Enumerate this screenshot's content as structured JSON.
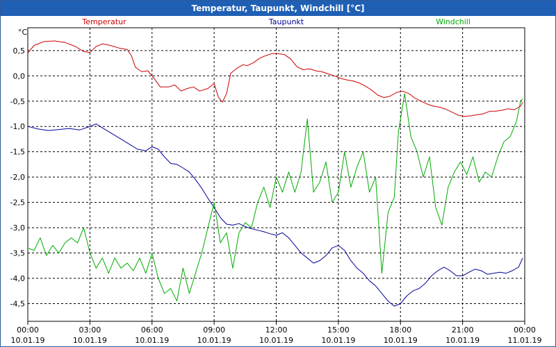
{
  "window": {
    "title": "Temperatur, Taupunkt, Windchill [°C]"
  },
  "chart_data": {
    "type": "line",
    "unit_label": "°C",
    "y_ticks": [
      "0,5",
      "0,0",
      "-0,5",
      "-1,0",
      "-1,5",
      "-2,0",
      "-2,5",
      "-3,0",
      "-3,5",
      "-4,0",
      "-4,5"
    ],
    "y_tick_values": [
      0.5,
      0.0,
      -0.5,
      -1.0,
      -1.5,
      -2.0,
      -2.5,
      -3.0,
      -3.5,
      -4.0,
      -4.5
    ],
    "ylim": [
      -4.85,
      0.95
    ],
    "xlim": [
      0,
      24
    ],
    "x_ticks": [
      {
        "time": "00:00",
        "date": "10.01.19"
      },
      {
        "time": "03:00",
        "date": "10.01.19"
      },
      {
        "time": "06:00",
        "date": "10.01.19"
      },
      {
        "time": "09:00",
        "date": "10.01.19"
      },
      {
        "time": "12:00",
        "date": "10.01.19"
      },
      {
        "time": "15:00",
        "date": "10.01.19"
      },
      {
        "time": "18:00",
        "date": "10.01.19"
      },
      {
        "time": "21:00",
        "date": "10.01.19"
      },
      {
        "time": "00:00",
        "date": "11.01.19"
      }
    ],
    "grid": true,
    "legend_position": "top",
    "series": [
      {
        "name": "Temperatur",
        "color": "#cc0000",
        "points": [
          [
            0.0,
            0.45
          ],
          [
            0.3,
            0.6
          ],
          [
            0.8,
            0.68
          ],
          [
            1.3,
            0.69
          ],
          [
            1.8,
            0.66
          ],
          [
            2.3,
            0.58
          ],
          [
            2.7,
            0.48
          ],
          [
            3.0,
            0.46
          ],
          [
            3.3,
            0.58
          ],
          [
            3.6,
            0.63
          ],
          [
            4.0,
            0.6
          ],
          [
            4.4,
            0.55
          ],
          [
            4.8,
            0.52
          ],
          [
            5.0,
            0.4
          ],
          [
            5.2,
            0.17
          ],
          [
            5.5,
            0.08
          ],
          [
            5.8,
            0.1
          ],
          [
            6.1,
            -0.05
          ],
          [
            6.4,
            -0.22
          ],
          [
            6.8,
            -0.22
          ],
          [
            7.1,
            -0.18
          ],
          [
            7.4,
            -0.3
          ],
          [
            7.7,
            -0.25
          ],
          [
            8.0,
            -0.22
          ],
          [
            8.3,
            -0.3
          ],
          [
            8.7,
            -0.25
          ],
          [
            9.0,
            -0.15
          ],
          [
            9.2,
            -0.42
          ],
          [
            9.4,
            -0.52
          ],
          [
            9.6,
            -0.35
          ],
          [
            9.8,
            0.05
          ],
          [
            10.1,
            0.15
          ],
          [
            10.4,
            0.22
          ],
          [
            10.6,
            0.2
          ],
          [
            10.9,
            0.26
          ],
          [
            11.2,
            0.35
          ],
          [
            11.5,
            0.4
          ],
          [
            11.8,
            0.44
          ],
          [
            12.1,
            0.44
          ],
          [
            12.4,
            0.42
          ],
          [
            12.7,
            0.33
          ],
          [
            13.0,
            0.18
          ],
          [
            13.3,
            0.12
          ],
          [
            13.6,
            0.14
          ],
          [
            13.9,
            0.1
          ],
          [
            14.2,
            0.08
          ],
          [
            14.5,
            0.04
          ],
          [
            14.8,
            0.0
          ],
          [
            15.1,
            -0.05
          ],
          [
            15.4,
            -0.08
          ],
          [
            15.7,
            -0.1
          ],
          [
            16.0,
            -0.14
          ],
          [
            16.3,
            -0.2
          ],
          [
            16.6,
            -0.28
          ],
          [
            16.9,
            -0.38
          ],
          [
            17.2,
            -0.43
          ],
          [
            17.5,
            -0.4
          ],
          [
            17.8,
            -0.33
          ],
          [
            18.1,
            -0.3
          ],
          [
            18.4,
            -0.35
          ],
          [
            18.7,
            -0.44
          ],
          [
            19.0,
            -0.5
          ],
          [
            19.3,
            -0.56
          ],
          [
            19.6,
            -0.6
          ],
          [
            19.9,
            -0.62
          ],
          [
            20.2,
            -0.66
          ],
          [
            20.5,
            -0.72
          ],
          [
            20.8,
            -0.78
          ],
          [
            21.1,
            -0.8
          ],
          [
            21.4,
            -0.79
          ],
          [
            21.7,
            -0.77
          ],
          [
            22.0,
            -0.75
          ],
          [
            22.3,
            -0.7
          ],
          [
            22.6,
            -0.7
          ],
          [
            22.9,
            -0.68
          ],
          [
            23.2,
            -0.65
          ],
          [
            23.5,
            -0.67
          ],
          [
            23.8,
            -0.6
          ],
          [
            23.9,
            -0.52
          ]
        ]
      },
      {
        "name": "Taupunkt",
        "color": "#000099",
        "points": [
          [
            0.0,
            -1.0
          ],
          [
            0.5,
            -1.05
          ],
          [
            1.0,
            -1.08
          ],
          [
            1.5,
            -1.06
          ],
          [
            2.0,
            -1.04
          ],
          [
            2.5,
            -1.07
          ],
          [
            3.0,
            -1.0
          ],
          [
            3.3,
            -0.95
          ],
          [
            3.7,
            -1.05
          ],
          [
            4.1,
            -1.15
          ],
          [
            4.5,
            -1.25
          ],
          [
            4.9,
            -1.35
          ],
          [
            5.3,
            -1.45
          ],
          [
            5.7,
            -1.48
          ],
          [
            6.0,
            -1.4
          ],
          [
            6.3,
            -1.45
          ],
          [
            6.6,
            -1.6
          ],
          [
            6.9,
            -1.73
          ],
          [
            7.2,
            -1.75
          ],
          [
            7.5,
            -1.82
          ],
          [
            7.8,
            -1.9
          ],
          [
            8.1,
            -2.05
          ],
          [
            8.4,
            -2.22
          ],
          [
            8.7,
            -2.42
          ],
          [
            9.0,
            -2.6
          ],
          [
            9.3,
            -2.8
          ],
          [
            9.6,
            -2.93
          ],
          [
            9.9,
            -2.95
          ],
          [
            10.2,
            -2.92
          ],
          [
            10.5,
            -2.98
          ],
          [
            10.8,
            -3.02
          ],
          [
            11.1,
            -3.05
          ],
          [
            11.4,
            -3.08
          ],
          [
            11.7,
            -3.12
          ],
          [
            12.0,
            -3.15
          ],
          [
            12.3,
            -3.1
          ],
          [
            12.6,
            -3.2
          ],
          [
            12.9,
            -3.35
          ],
          [
            13.2,
            -3.5
          ],
          [
            13.5,
            -3.6
          ],
          [
            13.8,
            -3.7
          ],
          [
            14.1,
            -3.65
          ],
          [
            14.4,
            -3.55
          ],
          [
            14.7,
            -3.4
          ],
          [
            15.0,
            -3.35
          ],
          [
            15.3,
            -3.45
          ],
          [
            15.6,
            -3.65
          ],
          [
            15.9,
            -3.8
          ],
          [
            16.2,
            -3.9
          ],
          [
            16.5,
            -4.05
          ],
          [
            16.8,
            -4.15
          ],
          [
            17.1,
            -4.3
          ],
          [
            17.4,
            -4.45
          ],
          [
            17.7,
            -4.55
          ],
          [
            18.0,
            -4.5
          ],
          [
            18.3,
            -4.35
          ],
          [
            18.6,
            -4.25
          ],
          [
            18.9,
            -4.2
          ],
          [
            19.2,
            -4.1
          ],
          [
            19.5,
            -3.95
          ],
          [
            19.8,
            -3.85
          ],
          [
            20.1,
            -3.78
          ],
          [
            20.4,
            -3.85
          ],
          [
            20.7,
            -3.95
          ],
          [
            21.0,
            -3.95
          ],
          [
            21.3,
            -3.88
          ],
          [
            21.6,
            -3.82
          ],
          [
            21.9,
            -3.85
          ],
          [
            22.2,
            -3.92
          ],
          [
            22.5,
            -3.9
          ],
          [
            22.8,
            -3.88
          ],
          [
            23.1,
            -3.9
          ],
          [
            23.4,
            -3.85
          ],
          [
            23.7,
            -3.78
          ],
          [
            23.9,
            -3.6
          ]
        ]
      },
      {
        "name": "Windchill",
        "color": "#00aa00",
        "points": [
          [
            0.0,
            -3.4
          ],
          [
            0.3,
            -3.45
          ],
          [
            0.6,
            -3.2
          ],
          [
            0.9,
            -3.55
          ],
          [
            1.2,
            -3.35
          ],
          [
            1.5,
            -3.5
          ],
          [
            1.8,
            -3.3
          ],
          [
            2.1,
            -3.2
          ],
          [
            2.4,
            -3.3
          ],
          [
            2.7,
            -3.0
          ],
          [
            3.0,
            -3.5
          ],
          [
            3.3,
            -3.8
          ],
          [
            3.6,
            -3.6
          ],
          [
            3.9,
            -3.9
          ],
          [
            4.2,
            -3.6
          ],
          [
            4.5,
            -3.8
          ],
          [
            4.8,
            -3.7
          ],
          [
            5.1,
            -3.85
          ],
          [
            5.4,
            -3.6
          ],
          [
            5.7,
            -3.9
          ],
          [
            6.0,
            -3.5
          ],
          [
            6.3,
            -4.0
          ],
          [
            6.6,
            -4.3
          ],
          [
            6.9,
            -4.2
          ],
          [
            7.2,
            -4.45
          ],
          [
            7.5,
            -3.8
          ],
          [
            7.8,
            -4.3
          ],
          [
            8.1,
            -3.9
          ],
          [
            8.4,
            -3.5
          ],
          [
            8.7,
            -3.0
          ],
          [
            9.0,
            -2.5
          ],
          [
            9.3,
            -3.3
          ],
          [
            9.6,
            -3.1
          ],
          [
            9.9,
            -3.8
          ],
          [
            10.2,
            -3.1
          ],
          [
            10.5,
            -2.9
          ],
          [
            10.8,
            -3.0
          ],
          [
            11.1,
            -2.5
          ],
          [
            11.4,
            -2.2
          ],
          [
            11.7,
            -2.6
          ],
          [
            12.0,
            -2.0
          ],
          [
            12.3,
            -2.3
          ],
          [
            12.6,
            -1.9
          ],
          [
            12.9,
            -2.3
          ],
          [
            13.2,
            -1.9
          ],
          [
            13.5,
            -0.85
          ],
          [
            13.8,
            -2.3
          ],
          [
            14.1,
            -2.1
          ],
          [
            14.4,
            -1.7
          ],
          [
            14.7,
            -2.5
          ],
          [
            15.0,
            -2.3
          ],
          [
            15.3,
            -1.5
          ],
          [
            15.6,
            -2.2
          ],
          [
            15.9,
            -1.8
          ],
          [
            16.2,
            -1.5
          ],
          [
            16.5,
            -2.3
          ],
          [
            16.8,
            -2.0
          ],
          [
            17.1,
            -3.9
          ],
          [
            17.4,
            -2.7
          ],
          [
            17.7,
            -2.4
          ],
          [
            17.9,
            -1.1
          ],
          [
            18.2,
            -0.35
          ],
          [
            18.5,
            -1.2
          ],
          [
            18.8,
            -1.5
          ],
          [
            19.1,
            -2.0
          ],
          [
            19.4,
            -1.6
          ],
          [
            19.7,
            -2.6
          ],
          [
            20.0,
            -2.95
          ],
          [
            20.3,
            -2.2
          ],
          [
            20.6,
            -1.9
          ],
          [
            20.9,
            -1.7
          ],
          [
            21.2,
            -1.95
          ],
          [
            21.5,
            -1.6
          ],
          [
            21.8,
            -2.1
          ],
          [
            22.1,
            -1.9
          ],
          [
            22.4,
            -2.0
          ],
          [
            22.7,
            -1.6
          ],
          [
            23.0,
            -1.3
          ],
          [
            23.3,
            -1.2
          ],
          [
            23.6,
            -0.9
          ],
          [
            23.8,
            -0.5
          ],
          [
            23.9,
            -0.45
          ]
        ]
      }
    ]
  }
}
